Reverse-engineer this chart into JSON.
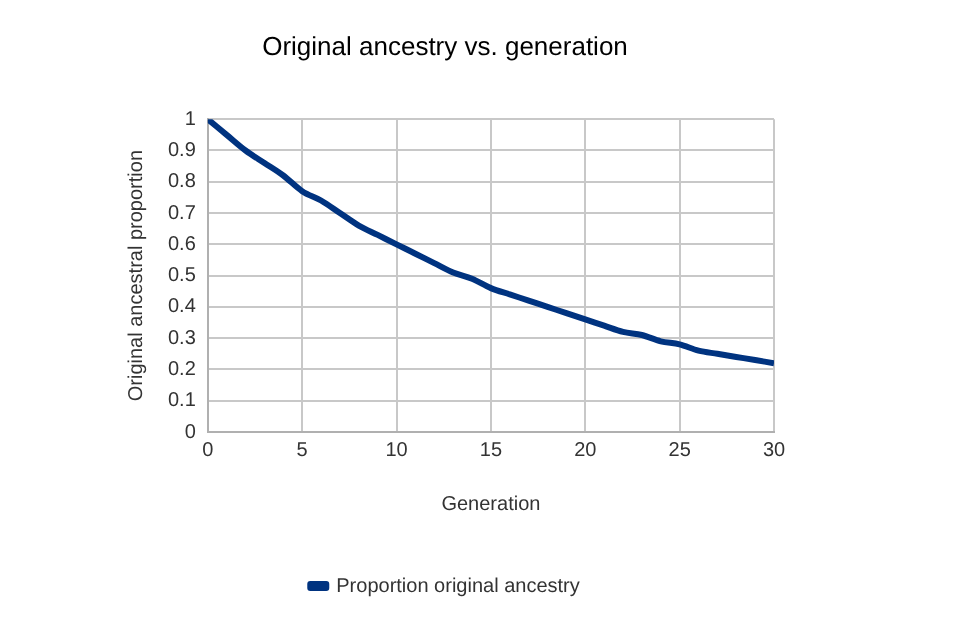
{
  "chart_data": {
    "type": "line",
    "title": "Original ancestry vs. generation",
    "xlabel": "Generation",
    "ylabel": "Original ancestral proportion",
    "x": [
      0,
      1,
      2,
      3,
      4,
      5,
      6,
      7,
      8,
      9,
      10,
      11,
      12,
      13,
      14,
      15,
      16,
      17,
      18,
      19,
      20,
      21,
      22,
      23,
      24,
      25,
      26,
      27,
      28,
      29,
      30
    ],
    "series": [
      {
        "name": "Proportion original ancestry",
        "color": "#003380",
        "values": [
          1,
          0.95,
          0.9,
          0.86,
          0.82,
          0.77,
          0.74,
          0.7,
          0.66,
          0.63,
          0.6,
          0.57,
          0.54,
          0.51,
          0.49,
          0.46,
          0.44,
          0.42,
          0.4,
          0.38,
          0.36,
          0.34,
          0.32,
          0.31,
          0.29,
          0.28,
          0.26,
          0.25,
          0.24,
          0.23,
          0.22
        ]
      }
    ],
    "xlim": [
      0,
      30
    ],
    "xticks": [
      0,
      5,
      10,
      15,
      20,
      25,
      30
    ],
    "ylim": [
      0,
      1
    ],
    "yticks": [
      0,
      0.1,
      0.2,
      0.3,
      0.4,
      0.5,
      0.6,
      0.7,
      0.8,
      0.9,
      1
    ],
    "grid": true,
    "legend": "bottom",
    "marker": "none",
    "line_style": "solid"
  }
}
